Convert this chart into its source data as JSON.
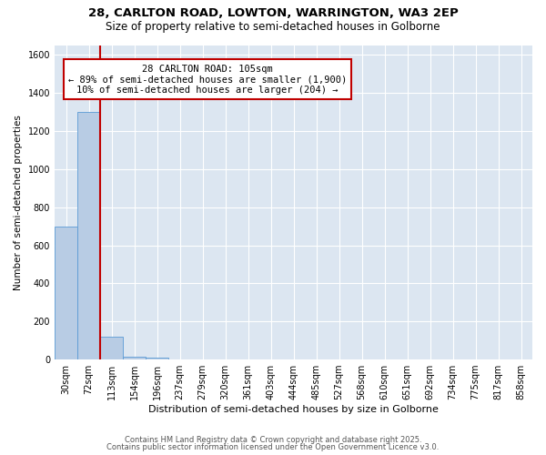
{
  "title1": "28, CARLTON ROAD, LOWTON, WARRINGTON, WA3 2EP",
  "title2": "Size of property relative to semi-detached houses in Golborne",
  "xlabel": "Distribution of semi-detached houses by size in Golborne",
  "ylabel": "Number of semi-detached properties",
  "categories": [
    "30sqm",
    "72sqm",
    "113sqm",
    "154sqm",
    "196sqm",
    "237sqm",
    "279sqm",
    "320sqm",
    "361sqm",
    "403sqm",
    "444sqm",
    "485sqm",
    "527sqm",
    "568sqm",
    "610sqm",
    "651sqm",
    "692sqm",
    "734sqm",
    "775sqm",
    "817sqm",
    "858sqm"
  ],
  "values": [
    700,
    1300,
    120,
    15,
    10,
    0,
    0,
    0,
    0,
    0,
    0,
    0,
    0,
    0,
    0,
    0,
    0,
    0,
    0,
    0,
    0
  ],
  "bar_color": "#b8cce4",
  "bar_edge_color": "#5b9bd5",
  "plot_bg_color": "#dce6f1",
  "fig_bg_color": "#ffffff",
  "grid_color": "#ffffff",
  "vline_color": "#c00000",
  "vline_x_index": 2,
  "annotation_line1": "28 CARLTON ROAD: 105sqm",
  "annotation_line2": "← 89% of semi-detached houses are smaller (1,900)",
  "annotation_line3": "10% of semi-detached houses are larger (204) →",
  "annotation_box_facecolor": "#ffffff",
  "annotation_box_edgecolor": "#c00000",
  "ylim_max": 1650,
  "yticks": [
    0,
    200,
    400,
    600,
    800,
    1000,
    1200,
    1400,
    1600
  ],
  "footer1": "Contains HM Land Registry data © Crown copyright and database right 2025.",
  "footer2": "Contains public sector information licensed under the Open Government Licence v3.0.",
  "title1_fontsize": 9.5,
  "title2_fontsize": 8.5,
  "ylabel_fontsize": 7.5,
  "xlabel_fontsize": 8,
  "tick_fontsize": 7,
  "annotation_fontsize": 7.5,
  "footer_fontsize": 6
}
